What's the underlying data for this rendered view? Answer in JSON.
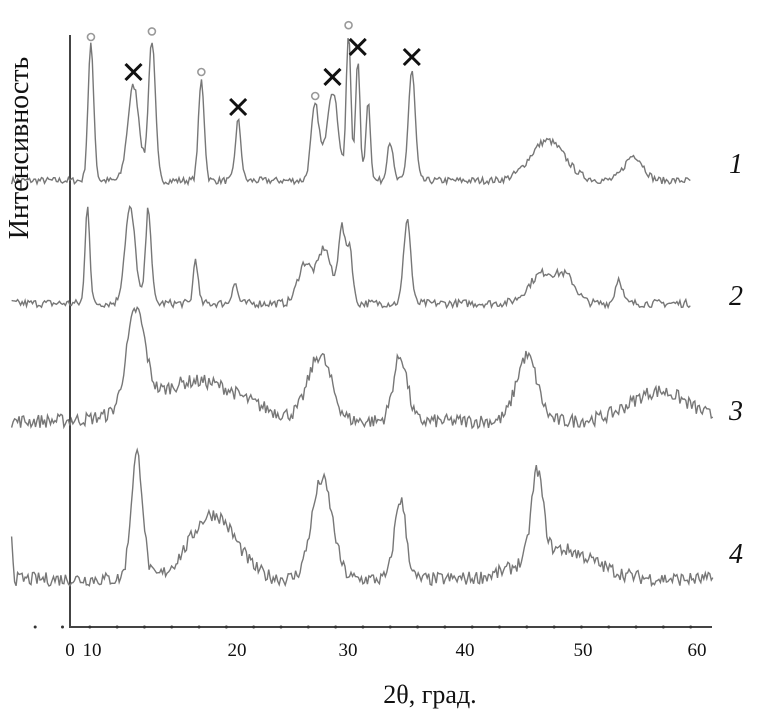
{
  "chart_data": {
    "type": "line",
    "title": "",
    "xlabel": "2θ, град.",
    "ylabel": "Интенсивность",
    "xlim": [
      0,
      62
    ],
    "x_ticks": [
      0,
      10,
      20,
      30,
      40,
      50,
      60
    ],
    "grid": false,
    "series": [
      {
        "name": "1",
        "offset": 0,
        "noise": 7,
        "peaks": [
          [
            7.3,
            135,
            0.25
          ],
          [
            11.0,
            95,
            0.5
          ],
          [
            12.6,
            140,
            0.3
          ],
          [
            16.9,
            100,
            0.25
          ],
          [
            20.1,
            60,
            0.25
          ],
          [
            26.8,
            75,
            0.35
          ],
          [
            28.3,
            90,
            0.5
          ],
          [
            29.7,
            145,
            0.2
          ],
          [
            30.5,
            120,
            0.2
          ],
          [
            31.4,
            80,
            0.2
          ],
          [
            33.3,
            40,
            0.25
          ],
          [
            35.2,
            110,
            0.3
          ],
          [
            47.0,
            40,
            1.5
          ],
          [
            54.5,
            25,
            0.8
          ]
        ]
      },
      {
        "name": "2",
        "offset": 0,
        "noise": 8,
        "peaks": [
          [
            7.0,
            100,
            0.2
          ],
          [
            10.7,
            95,
            0.45
          ],
          [
            12.3,
            95,
            0.25
          ],
          [
            16.4,
            45,
            0.2
          ],
          [
            19.8,
            20,
            0.25
          ],
          [
            25.9,
            40,
            0.6
          ],
          [
            27.6,
            55,
            0.6
          ],
          [
            29.1,
            75,
            0.3
          ],
          [
            29.8,
            55,
            0.25
          ],
          [
            34.8,
            85,
            0.3
          ],
          [
            46.6,
            30,
            1.2
          ],
          [
            48.7,
            22,
            0.8
          ],
          [
            53.2,
            25,
            0.3
          ]
        ]
      },
      {
        "name": "3",
        "offset": 0,
        "noise": 14,
        "peaks": [
          [
            11.2,
            95,
            0.8
          ],
          [
            16.5,
            40,
            4
          ],
          [
            27.2,
            65,
            1.0
          ],
          [
            34.2,
            65,
            0.6
          ],
          [
            45.2,
            65,
            0.9
          ],
          [
            56.7,
            30,
            2.5
          ]
        ]
      },
      {
        "name": "4",
        "offset": 0,
        "noise": 14,
        "peaks": [
          [
            0.3,
            60,
            0.15
          ],
          [
            11.3,
            125,
            0.5
          ],
          [
            17.9,
            65,
            2.0
          ],
          [
            27.4,
            100,
            0.9
          ],
          [
            34.2,
            80,
            0.5
          ],
          [
            46.1,
            85,
            0.5
          ],
          [
            48,
            30,
            3
          ]
        ]
      }
    ],
    "markers": [
      {
        "symbol": "o",
        "x": 7.3,
        "series": "1"
      },
      {
        "symbol": "x",
        "x": 11.0,
        "series": "1"
      },
      {
        "symbol": "o",
        "x": 12.6,
        "series": "1"
      },
      {
        "symbol": "o",
        "x": 16.9,
        "series": "1"
      },
      {
        "symbol": "x",
        "x": 20.1,
        "series": "1"
      },
      {
        "symbol": "o",
        "x": 26.8,
        "series": "1"
      },
      {
        "symbol": "x",
        "x": 28.3,
        "series": "1"
      },
      {
        "symbol": "o",
        "x": 29.7,
        "series": "1"
      },
      {
        "symbol": "x",
        "x": 30.5,
        "series": "1"
      },
      {
        "symbol": "x",
        "x": 35.2,
        "series": "1"
      }
    ],
    "curve_labels": [
      "1",
      "2",
      "3",
      "4"
    ]
  }
}
